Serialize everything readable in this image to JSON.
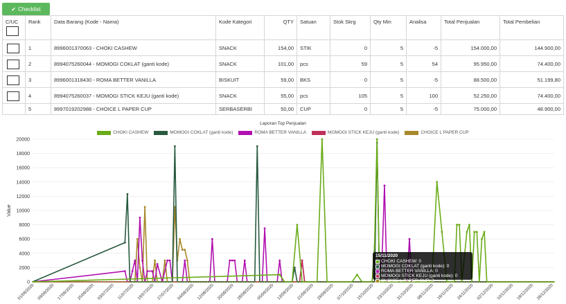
{
  "toolbar": {
    "checklist_label": "Checklist"
  },
  "table": {
    "headers": [
      "C/UC",
      "Rank",
      "Data Barang (Kode - Nama)",
      "Kode Kategori",
      "QTY",
      "Satuan",
      "Stok Skrg",
      "Qty Min",
      "Analisa",
      "Total Penjualan",
      "Total Pembelian"
    ],
    "rows": [
      {
        "rank": "1",
        "item": "8996001370063 - CHOKI CASHEW",
        "kategori": "SNACK",
        "qty": "154,00",
        "satuan": "STIK",
        "stok": "0",
        "qtymin": "5",
        "analisa": "-5",
        "penjualan": "154.000,00",
        "pembelian": "144.900,00"
      },
      {
        "rank": "2",
        "item": "8994075260044 - MOMOGI COKLAT (ganti kode)",
        "kategori": "SNACK",
        "qty": "101,00",
        "satuan": "pcs",
        "stok": "59",
        "qtymin": "5",
        "analisa": "54",
        "penjualan": "95.950,00",
        "pembelian": "74.400,00"
      },
      {
        "rank": "3",
        "item": "8996001318430 - ROMA BETTER VANILLA",
        "kategori": "BISKUIT",
        "qty": "59,00",
        "satuan": "BKS",
        "stok": "0",
        "qtymin": "5",
        "analisa": "-5",
        "penjualan": "88.500,00",
        "pembelian": "51.199,80"
      },
      {
        "rank": "4",
        "item": "8994075260037 - MOMOGI STICK KEJU (ganti kode)",
        "kategori": "SNACK",
        "qty": "55,00",
        "satuan": "pcs",
        "stok": "105",
        "qtymin": "5",
        "analisa": "100",
        "penjualan": "52.250,00",
        "pembelian": "74.400,00"
      },
      {
        "rank": "5",
        "item": "8997019202988 - CHOICE L PAPER CUP",
        "kategori": "SERBASERBI",
        "qty": "50,00",
        "satuan": "CUP",
        "stok": "0",
        "qtymin": "5",
        "analisa": "-5",
        "penjualan": "75.000,00",
        "pembelian": "48.900,00"
      }
    ]
  },
  "chart_data": {
    "type": "line",
    "title": "Laporan Top Penjualan",
    "ylabel": "Value",
    "xlabel": "",
    "ylim": [
      0,
      20000
    ],
    "y_ticks": [
      0,
      2000,
      4000,
      6000,
      8000,
      10000,
      12000,
      14000,
      16000,
      18000,
      20000
    ],
    "x_tick_labels": [
      "01/06/2020",
      "09/06/2020",
      "17/06/2020",
      "25/06/2020",
      "03/07/2020",
      "11/07/2020",
      "19/07/2020",
      "27/07/2020",
      "04/08/2020",
      "12/08/2020",
      "20/08/2020",
      "28/08/2020",
      "05/09/2020",
      "13/09/2020",
      "21/09/2020",
      "29/09/2020",
      "07/10/2020",
      "15/10/2020",
      "23/10/2020",
      "31/10/2020",
      "08/11/2020",
      "16/11/2020",
      "24/11/2020",
      "02/12/2020",
      "10/12/2020",
      "18/12/2020",
      "26/12/2020"
    ],
    "legend_position": "top",
    "grid": true,
    "series": [
      {
        "name": "CHOKI CASHEW",
        "color": "#6aab18",
        "values": [
          [
            99,
            1000
          ],
          [
            101,
            0
          ],
          [
            104,
            0
          ],
          [
            106,
            8000
          ],
          [
            108,
            0
          ],
          [
            114,
            0
          ],
          [
            116,
            20000
          ],
          [
            118,
            0
          ],
          [
            128,
            0
          ],
          [
            130,
            1000
          ],
          [
            132,
            0
          ],
          [
            136,
            0
          ],
          [
            137,
            5000
          ],
          [
            138,
            20000
          ],
          [
            139,
            0
          ],
          [
            148,
            0
          ],
          [
            150,
            0
          ],
          [
            160,
            0
          ],
          [
            162,
            14000
          ],
          [
            164,
            7000
          ],
          [
            166,
            0
          ],
          [
            169,
            0
          ],
          [
            170,
            8000
          ],
          [
            171,
            8000
          ],
          [
            172,
            0
          ],
          [
            174,
            7000
          ],
          [
            175,
            8000
          ],
          [
            176,
            0
          ],
          [
            177,
            7000
          ],
          [
            178,
            7000
          ],
          [
            179,
            0
          ],
          [
            180,
            6000
          ],
          [
            181,
            7000
          ],
          [
            182,
            0
          ]
        ]
      },
      {
        "name": "MOMOGI COKLAT (ganti kode)",
        "color": "#27593e",
        "values": [
          [
            37,
            5500
          ],
          [
            38,
            12300
          ],
          [
            39,
            0
          ],
          [
            56,
            0
          ],
          [
            57,
            19000
          ],
          [
            58,
            0
          ],
          [
            89,
            0
          ],
          [
            90,
            19000
          ],
          [
            91,
            0
          ],
          [
            104,
            0
          ],
          [
            105,
            2000
          ],
          [
            106,
            0
          ],
          [
            137,
            0
          ],
          [
            138,
            19500
          ],
          [
            139,
            0
          ]
        ]
      },
      {
        "name": "ROMA BETTER VANILLA",
        "color": "#b010b0",
        "values": [
          [
            37,
            1500
          ],
          [
            38,
            0
          ],
          [
            39,
            0
          ],
          [
            40,
            1500
          ],
          [
            41,
            3000
          ],
          [
            42,
            0
          ],
          [
            43,
            9000
          ],
          [
            44,
            3000
          ],
          [
            45,
            0
          ],
          [
            46,
            1500
          ],
          [
            48,
            1500
          ],
          [
            49,
            0
          ],
          [
            50,
            2500
          ],
          [
            52,
            0
          ],
          [
            54,
            3000
          ],
          [
            55,
            3000
          ],
          [
            56,
            0
          ],
          [
            60,
            0
          ],
          [
            61,
            3000
          ],
          [
            62,
            0
          ],
          [
            71,
            0
          ],
          [
            72,
            6000
          ],
          [
            73,
            0
          ],
          [
            78,
            0
          ],
          [
            79,
            3000
          ],
          [
            80,
            3000
          ],
          [
            81,
            3000
          ],
          [
            82,
            0
          ],
          [
            84,
            0
          ],
          [
            85,
            3000
          ],
          [
            86,
            0
          ],
          [
            92,
            0
          ],
          [
            93,
            7500
          ],
          [
            94,
            0
          ],
          [
            98,
            0
          ],
          [
            99,
            3000
          ],
          [
            100,
            0
          ],
          [
            107,
            0
          ],
          [
            108,
            3000
          ],
          [
            109,
            0
          ],
          [
            137,
            0
          ],
          [
            138,
            3000
          ],
          [
            139,
            1500
          ],
          [
            140,
            3000
          ],
          [
            141,
            13500
          ],
          [
            142,
            0
          ],
          [
            150,
            0
          ],
          [
            151,
            6000
          ],
          [
            152,
            0
          ]
        ]
      },
      {
        "name": "MOMOGI STICK KEJU (ganti kode)",
        "color": "#c0305a",
        "values": [
          [
            107,
            0
          ],
          [
            108,
            3000
          ],
          [
            109,
            0
          ]
        ]
      },
      {
        "name": "CHOICE L PAPER CUP",
        "color": "#a8882a",
        "values": [
          [
            41,
            0
          ],
          [
            42,
            6000
          ],
          [
            43,
            2000
          ],
          [
            44,
            0
          ],
          [
            45,
            10500
          ],
          [
            46,
            0
          ],
          [
            48,
            0
          ],
          [
            49,
            3000
          ],
          [
            50,
            0
          ],
          [
            52,
            0
          ],
          [
            53,
            3000
          ],
          [
            54,
            0
          ],
          [
            56,
            0
          ],
          [
            57,
            10500
          ],
          [
            58,
            3000
          ],
          [
            59,
            6000
          ],
          [
            60,
            4500
          ],
          [
            61,
            4500
          ],
          [
            62,
            3000
          ],
          [
            63,
            0
          ]
        ]
      }
    ]
  },
  "tooltip": {
    "date": "15/11/2020",
    "rows": [
      {
        "label": "CHOKI CASHEW: 0",
        "color": "#6aab18"
      },
      {
        "label": "MOMOGI COKLAT (ganti kode): 0",
        "color": "#27593e"
      },
      {
        "label": "ROMA BETTER VANILLA: 0",
        "color": "#b010b0"
      },
      {
        "label": "MOMOGI STICK KEJU (ganti kode): 0",
        "color": "#c0305a"
      },
      {
        "label": "CHOICE L PAPER CUP: 0",
        "color": "#a8882a"
      }
    ]
  }
}
